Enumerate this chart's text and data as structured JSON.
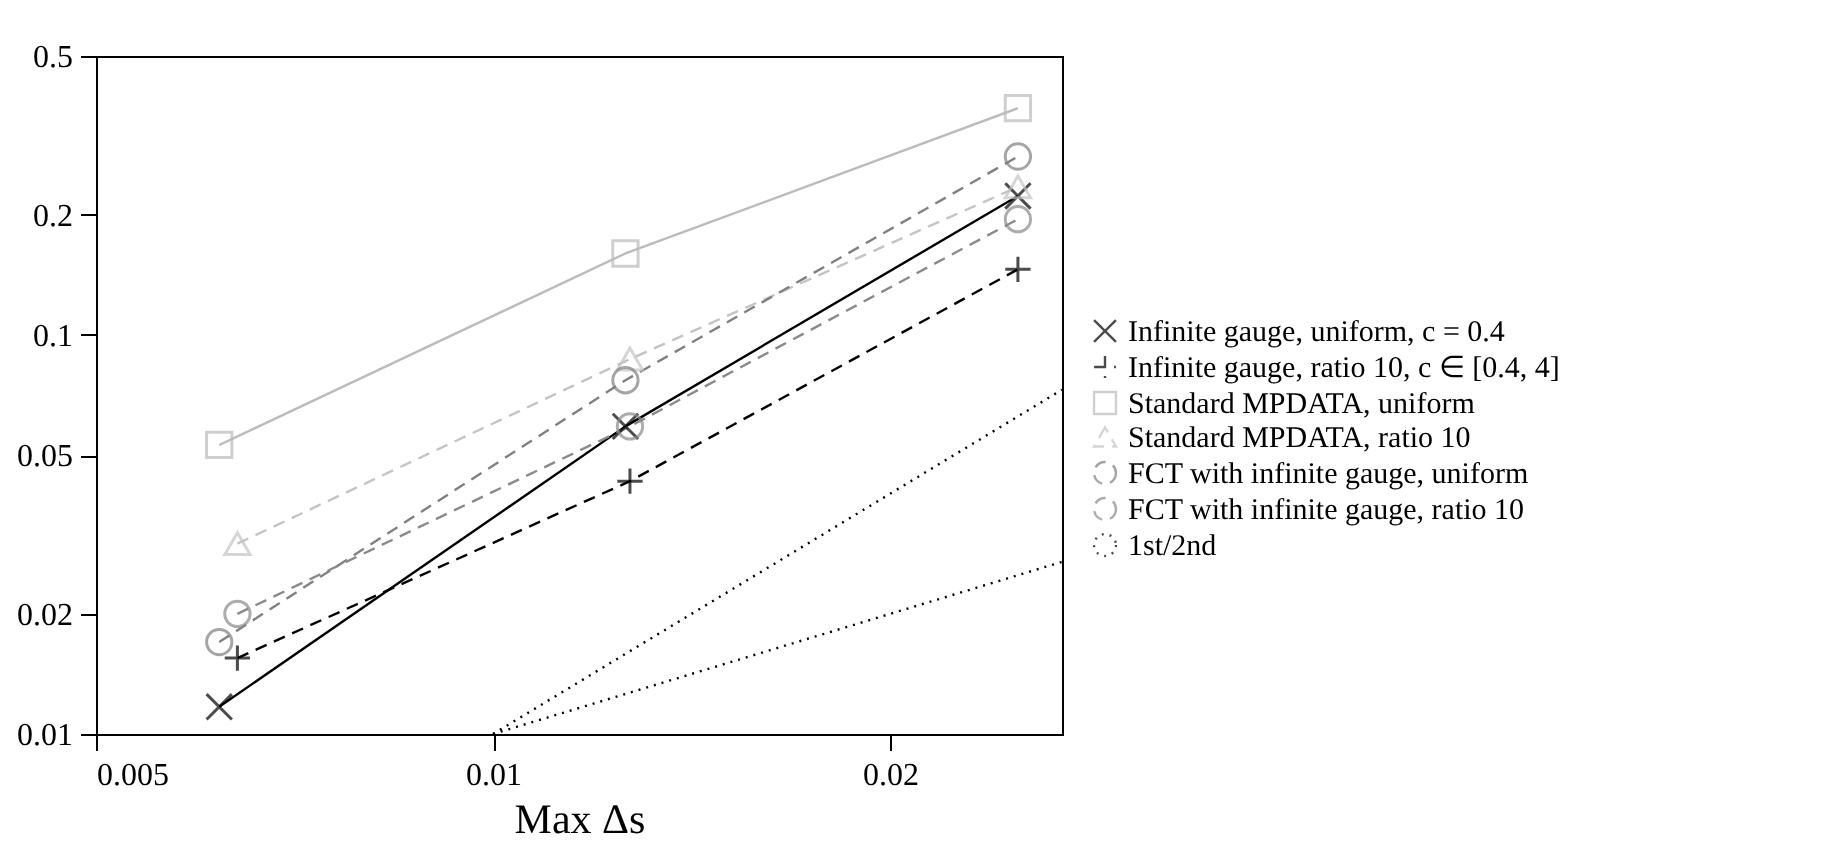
{
  "chart_data": {
    "type": "line",
    "xlabel": "Max Δs",
    "log": "xy",
    "grid": false,
    "legend": "right",
    "xlim": [
      0.005,
      0.027
    ],
    "xticks": [
      0.005,
      0.01,
      0.02
    ],
    "ylim": [
      0.01,
      0.5
    ],
    "yticks": [
      0.01,
      0.02,
      0.05,
      0.1,
      0.2,
      0.5
    ],
    "series": [
      {
        "name": "Infinite gauge, uniform, c = 0.4",
        "color": "#000000",
        "marker": "x",
        "line_style": "solid",
        "x": [
          0.0062,
          0.0126,
          0.025
        ],
        "values": [
          0.0117,
          0.059,
          0.223
        ]
      },
      {
        "name": "Infinite gauge, ratio 10, c ∈ [0.4, 4]",
        "color": "#000000",
        "marker": "plus",
        "line_style": "dashed",
        "x": [
          0.0064,
          0.0127,
          0.025
        ],
        "values": [
          0.0155,
          0.043,
          0.146
        ]
      },
      {
        "name": "Standard MPDATA, uniform",
        "color": "#bbbbbb",
        "marker": "square",
        "line_style": "solid",
        "x": [
          0.0062,
          0.0126,
          0.025
        ],
        "values": [
          0.053,
          0.16,
          0.37
        ]
      },
      {
        "name": "Standard MPDATA, ratio 10",
        "color": "#c4c4c4",
        "marker": "triangle",
        "line_style": "dashed",
        "x": [
          0.0064,
          0.0127,
          0.025
        ],
        "values": [
          0.03,
          0.087,
          0.235
        ]
      },
      {
        "name": "FCT with infinite gauge, uniform",
        "color": "#808080",
        "marker": "circle",
        "line_style": "dashed",
        "x": [
          0.0062,
          0.0126,
          0.025
        ],
        "values": [
          0.017,
          0.077,
          0.28
        ]
      },
      {
        "name": "FCT with infinite gauge, ratio 10",
        "color": "#8a8a8a",
        "marker": "circle",
        "line_style": "dashed",
        "x": [
          0.0064,
          0.0127,
          0.025
        ],
        "values": [
          0.02,
          0.059,
          0.195
        ]
      },
      {
        "name": "1st/2nd",
        "color": "#000000",
        "marker": "none",
        "line_style": "dotted",
        "x": [
          0.01,
          0.027
        ],
        "values": [
          0.01,
          0.0729
        ]
      },
      {
        "color": "#000000",
        "marker": "none",
        "line_style": "dotted",
        "x": [
          0.01,
          0.027
        ],
        "values": [
          0.01,
          0.027
        ]
      }
    ]
  }
}
